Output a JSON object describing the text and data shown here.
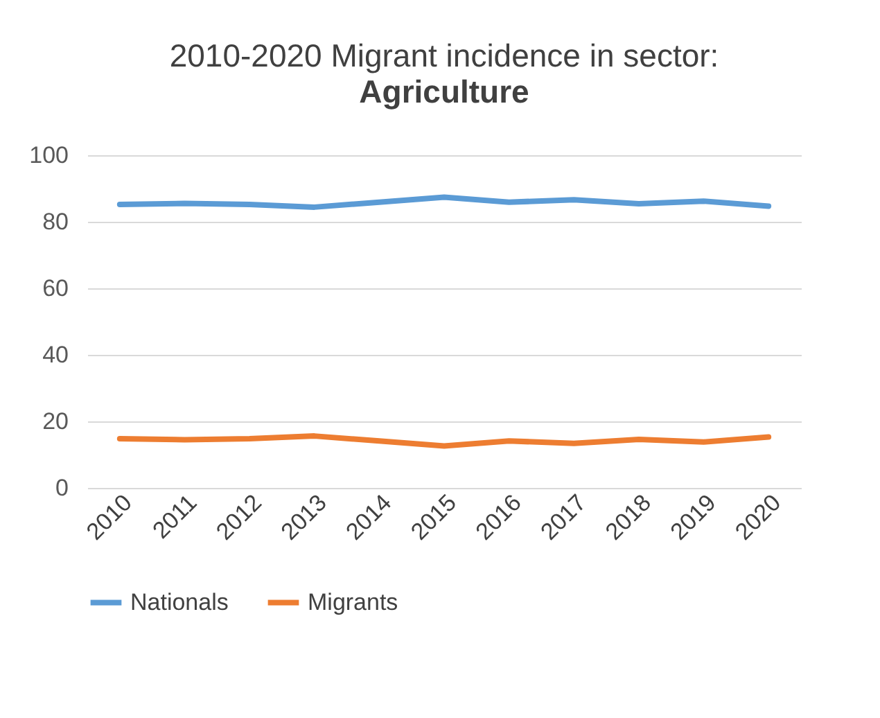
{
  "chart_data": {
    "type": "line",
    "title": "2010-2020 Migrant incidence in sector:",
    "subtitle": "Agriculture",
    "categories": [
      "2010",
      "2011",
      "2012",
      "2013",
      "2014",
      "2015",
      "2016",
      "2017",
      "2018",
      "2019",
      "2020"
    ],
    "series": [
      {
        "name": "Nationals",
        "color": "#5b9bd5",
        "values": [
          85.2,
          85.5,
          85.2,
          84.4,
          85.9,
          87.4,
          85.9,
          86.6,
          85.4,
          86.2,
          84.7
        ]
      },
      {
        "name": "Migrants",
        "color": "#ed7d31",
        "values": [
          14.8,
          14.5,
          14.8,
          15.6,
          14.1,
          12.6,
          14.1,
          13.4,
          14.6,
          13.8,
          15.3
        ]
      }
    ],
    "ylim": [
      0,
      100
    ],
    "yticks": [
      0,
      20,
      40,
      60,
      80,
      100
    ],
    "grid": "y",
    "legend": "bottom",
    "marker": "none",
    "line_style": "solid"
  }
}
